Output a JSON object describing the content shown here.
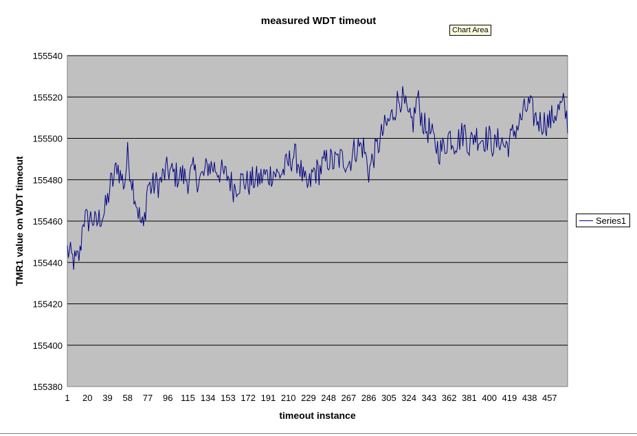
{
  "tooltip": "Chart Area",
  "colors": {
    "plot_background": "#c0c0c0",
    "series": "#000080",
    "grid": "#000000"
  },
  "chart_data": {
    "type": "line",
    "title": "measured WDT timeout",
    "xlabel": "timeout instance",
    "ylabel": "TMR1 value on WDT timeout",
    "ylim": [
      155380,
      155540
    ],
    "y_ticks": [
      155380,
      155400,
      155420,
      155440,
      155460,
      155480,
      155500,
      155520,
      155540
    ],
    "x_tick_labels": [
      "1",
      "20",
      "39",
      "58",
      "77",
      "96",
      "115",
      "134",
      "153",
      "172",
      "191",
      "210",
      "229",
      "248",
      "267",
      "286",
      "305",
      "324",
      "343",
      "362",
      "381",
      "400",
      "419",
      "438",
      "457"
    ],
    "x_range": [
      1,
      474
    ],
    "grid": "horizontal",
    "legend_position": "right",
    "series": [
      {
        "name": "Series1",
        "keypoints": [
          [
            1,
            155446
          ],
          [
            5,
            155442
          ],
          [
            9,
            155440
          ],
          [
            13,
            155444
          ],
          [
            16,
            155462
          ],
          [
            20,
            155460
          ],
          [
            24,
            155462
          ],
          [
            28,
            155458
          ],
          [
            32,
            155462
          ],
          [
            36,
            155464
          ],
          [
            39,
            155470
          ],
          [
            42,
            155478
          ],
          [
            45,
            155480
          ],
          [
            48,
            155488
          ],
          [
            51,
            155482
          ],
          [
            55,
            155478
          ],
          [
            58,
            155492
          ],
          [
            62,
            155480
          ],
          [
            66,
            155470
          ],
          [
            70,
            155460
          ],
          [
            73,
            155456
          ],
          [
            77,
            155478
          ],
          [
            80,
            155476
          ],
          [
            84,
            155478
          ],
          [
            88,
            155478
          ],
          [
            92,
            155482
          ],
          [
            96,
            155485
          ],
          [
            100,
            155483
          ],
          [
            105,
            155482
          ],
          [
            110,
            155482
          ],
          [
            115,
            155480
          ],
          [
            120,
            155484
          ],
          [
            125,
            155480
          ],
          [
            130,
            155482
          ],
          [
            134,
            155487
          ],
          [
            140,
            155486
          ],
          [
            145,
            155484
          ],
          [
            150,
            155482
          ],
          [
            153,
            155482
          ],
          [
            158,
            155476
          ],
          [
            162,
            155478
          ],
          [
            167,
            155480
          ],
          [
            172,
            155478
          ],
          [
            177,
            155480
          ],
          [
            182,
            155480
          ],
          [
            187,
            155482
          ],
          [
            191,
            155482
          ],
          [
            196,
            155484
          ],
          [
            200,
            155482
          ],
          [
            205,
            155484
          ],
          [
            210,
            155488
          ],
          [
            215,
            155492
          ],
          [
            220,
            155488
          ],
          [
            225,
            155478
          ],
          [
            229,
            155476
          ],
          [
            234,
            155484
          ],
          [
            239,
            155484
          ],
          [
            244,
            155488
          ],
          [
            248,
            155490
          ],
          [
            253,
            155488
          ],
          [
            258,
            155490
          ],
          [
            263,
            155490
          ],
          [
            267,
            155488
          ],
          [
            272,
            155494
          ],
          [
            276,
            155496
          ],
          [
            281,
            155496
          ],
          [
            286,
            155484
          ],
          [
            291,
            155492
          ],
          [
            296,
            155498
          ],
          [
            300,
            155504
          ],
          [
            305,
            155508
          ],
          [
            309,
            155512
          ],
          [
            313,
            155518
          ],
          [
            317,
            155520
          ],
          [
            321,
            155514
          ],
          [
            324,
            155508
          ],
          [
            328,
            155508
          ],
          [
            332,
            155520
          ],
          [
            336,
            155510
          ],
          [
            340,
            155504
          ],
          [
            343,
            155504
          ],
          [
            348,
            155498
          ],
          [
            353,
            155494
          ],
          [
            358,
            155496
          ],
          [
            362,
            155502
          ],
          [
            367,
            155498
          ],
          [
            372,
            155500
          ],
          [
            377,
            155504
          ],
          [
            381,
            155496
          ],
          [
            386,
            155502
          ],
          [
            391,
            155500
          ],
          [
            396,
            155500
          ],
          [
            400,
            155500
          ],
          [
            405,
            155496
          ],
          [
            410,
            155500
          ],
          [
            415,
            155496
          ],
          [
            419,
            155498
          ],
          [
            424,
            155504
          ],
          [
            429,
            155508
          ],
          [
            434,
            155514
          ],
          [
            438,
            155516
          ],
          [
            443,
            155510
          ],
          [
            448,
            155508
          ],
          [
            453,
            155508
          ],
          [
            457,
            155508
          ],
          [
            462,
            155512
          ],
          [
            466,
            155514
          ],
          [
            470,
            155516
          ],
          [
            474,
            155508
          ]
        ]
      }
    ]
  }
}
